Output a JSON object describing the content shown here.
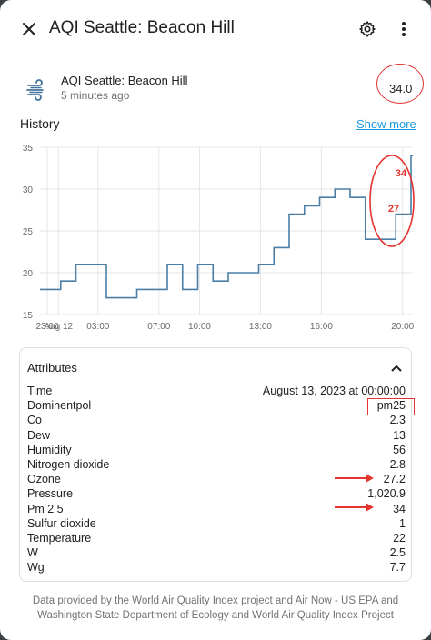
{
  "header": {
    "title": "AQI Seattle: Beacon Hill",
    "close_icon": "close-icon",
    "settings_icon": "gear-icon",
    "menu_icon": "more-vertical-icon"
  },
  "entity": {
    "icon": "air-haze-icon",
    "name": "AQI Seattle: Beacon Hill",
    "last_changed": "5 minutes ago",
    "state": "34.0"
  },
  "history": {
    "title": "History",
    "show_more": "Show more"
  },
  "chart_data": {
    "type": "line",
    "title": "",
    "xlabel": "",
    "ylabel": "",
    "ylim": [
      15,
      35
    ],
    "yticks": [
      "15",
      "20",
      "25",
      "30",
      "35"
    ],
    "xticks": [
      "23:00",
      "Aug 12",
      "03:00",
      "07:00",
      "10:00",
      "13:00",
      "16:00",
      "20:00"
    ],
    "step": true,
    "series": [
      {
        "x": [
          "23:00",
          "00:00",
          "01:00",
          "02:00",
          "03:00",
          "04:00",
          "05:00",
          "06:00",
          "07:00",
          "08:00",
          "09:00",
          "10:00",
          "11:00",
          "12:00",
          "13:00",
          "14:00",
          "15:00",
          "16:00",
          "17:00",
          "18:00",
          "19:00",
          "20:00",
          "21:00",
          "22:00",
          "23:00"
        ],
        "values": [
          18,
          19,
          21,
          21,
          17,
          17,
          18,
          18,
          21,
          18,
          21,
          19,
          20,
          20,
          21,
          23,
          27,
          28,
          29,
          30,
          29,
          24,
          24,
          27,
          34
        ]
      }
    ],
    "annotations": [
      "34",
      "27"
    ],
    "color": "#4a7ea6",
    "grid": true
  },
  "attributes": {
    "title": "Attributes",
    "chevron_icon": "chevron-up-icon",
    "rows": [
      {
        "key": "Time",
        "value": "August 13, 2023 at 00:00:00"
      },
      {
        "key": "Dominentpol",
        "value": "pm25"
      },
      {
        "key": "Co",
        "value": "2.3"
      },
      {
        "key": "Dew",
        "value": "13"
      },
      {
        "key": "Humidity",
        "value": "56"
      },
      {
        "key": "Nitrogen dioxide",
        "value": "2.8"
      },
      {
        "key": "Ozone",
        "value": "27.2"
      },
      {
        "key": "Pressure",
        "value": "1,020.9"
      },
      {
        "key": "Pm 2 5",
        "value": "34"
      },
      {
        "key": "Sulfur dioxide",
        "value": "1"
      },
      {
        "key": "Temperature",
        "value": "22"
      },
      {
        "key": "W",
        "value": "2.5"
      },
      {
        "key": "Wg",
        "value": "7.7"
      }
    ]
  },
  "footer": {
    "attribution": "Data provided by the World Air Quality Index project and Air Now - US EPA and Washington State Department of Ecology and World Air Quality Index Project"
  },
  "colors": {
    "accent": "#1e9ae0",
    "markup_red": "#e3342f",
    "line": "#4a7ea6"
  }
}
